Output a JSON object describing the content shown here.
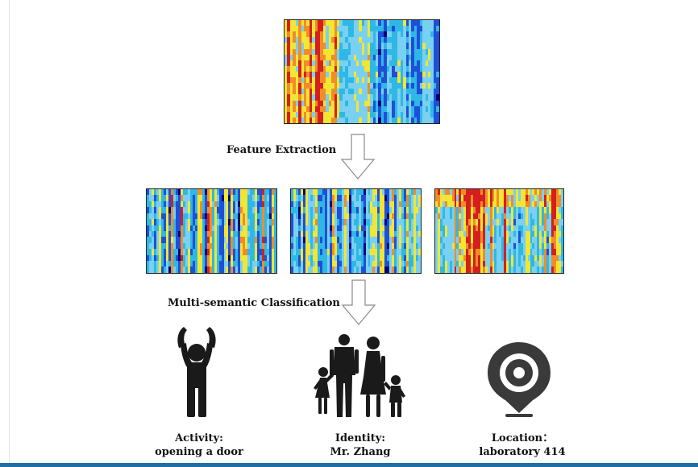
{
  "steps": {
    "feature_extraction": "Feature Extraction",
    "multi_semantic": "Multi-semantic Classification"
  },
  "heatmaps": [
    {
      "name": "input-csi-heatmap",
      "cols": 56,
      "rows": 18,
      "seed": 7,
      "palette": "warm-left"
    },
    {
      "name": "feature-map-1",
      "cols": 54,
      "rows": 14,
      "seed": 19,
      "palette": "mixed"
    },
    {
      "name": "feature-map-2",
      "cols": 54,
      "rows": 14,
      "seed": 41,
      "palette": "cool"
    },
    {
      "name": "feature-map-3",
      "cols": 54,
      "rows": 14,
      "seed": 73,
      "palette": "warm-top"
    }
  ],
  "classes": [
    {
      "name": "activity",
      "icon": "person-raising-arms-icon",
      "line1": "Activity:",
      "line2": "opening a door"
    },
    {
      "name": "identity",
      "icon": "family-silhouette-icon",
      "line1": "Identity:",
      "line2": "Mr. Zhang"
    },
    {
      "name": "location",
      "icon": "location-pin-icon",
      "line1": "Location：",
      "line2": "laboratory 414"
    }
  ],
  "colors": {
    "jet_dark_blue": "#00007f",
    "jet_blue": "#1f4fd8",
    "jet_cyan": "#2fb8e6",
    "jet_light_blue": "#7ad0f0",
    "jet_yellow": "#f2e634",
    "jet_orange": "#f28c28",
    "jet_red": "#d51f1f",
    "frame_bar": "#1f6fa4",
    "icon": "#1a1a1a"
  }
}
